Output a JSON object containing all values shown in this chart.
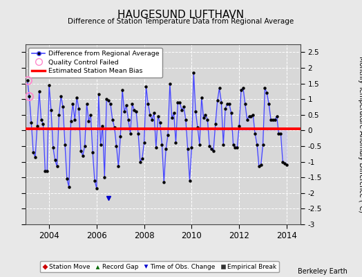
{
  "title": "HAUGESUND LUFTHAVN",
  "subtitle": "Difference of Station Temperature Data from Regional Average",
  "ylabel": "Monthly Temperature Anomaly Difference (°C)",
  "xlabel_ticks": [
    2004,
    2006,
    2008,
    2010,
    2012,
    2014
  ],
  "ylim": [
    -3,
    2.75
  ],
  "yticks": [
    -3,
    -2.5,
    -2,
    -1.5,
    -1,
    -0.5,
    0,
    0.5,
    1,
    1.5,
    2,
    2.5
  ],
  "mean_bias": 0.05,
  "bias_color": "#ff0000",
  "line_color": "#4444ff",
  "line_fill_color": "#aaaaff",
  "marker_color": "#000000",
  "qc_fail_indices": [
    0,
    1
  ],
  "background_color": "#d8d8d8",
  "fig_background_color": "#e8e8e8",
  "berkeley_earth_text": "Berkeley Earth",
  "xlim": [
    2003.0,
    2014.58
  ],
  "t_start": 2003.083,
  "data": [
    1.6,
    1.1,
    0.25,
    -0.7,
    -0.85,
    0.15,
    1.25,
    0.35,
    0.2,
    -1.3,
    -1.3,
    1.45,
    0.65,
    -0.55,
    -0.95,
    -1.15,
    0.5,
    1.1,
    0.75,
    -0.45,
    -1.55,
    -1.8,
    0.3,
    0.85,
    0.35,
    1.05,
    0.7,
    -0.65,
    -0.8,
    -0.5,
    0.85,
    0.3,
    0.5,
    -0.7,
    -1.6,
    -1.85,
    1.15,
    -0.45,
    0.15,
    -1.5,
    1.0,
    0.95,
    0.85,
    0.35,
    0.1,
    -0.5,
    -1.15,
    -0.2,
    1.3,
    0.6,
    0.8,
    0.35,
    -0.1,
    0.85,
    0.65,
    0.6,
    -0.1,
    -1.0,
    -0.9,
    -0.4,
    1.4,
    0.85,
    0.5,
    0.35,
    0.55,
    -0.55,
    0.45,
    0.25,
    -0.45,
    -1.65,
    -0.6,
    -0.15,
    1.5,
    0.4,
    0.55,
    -0.4,
    0.9,
    0.9,
    0.65,
    0.75,
    0.35,
    -0.6,
    -1.6,
    -0.55,
    1.85,
    0.6,
    0.1,
    -0.45,
    1.05,
    0.4,
    0.5,
    0.35,
    -0.5,
    -0.6,
    -0.65,
    0.2,
    0.95,
    1.35,
    0.9,
    -0.45,
    0.7,
    0.85,
    0.85,
    0.55,
    -0.45,
    -0.55,
    -0.55,
    0.15,
    1.3,
    1.35,
    0.85,
    0.35,
    0.45,
    0.45,
    0.5,
    -0.1,
    -0.45,
    -1.15,
    -1.1,
    -0.45,
    1.35,
    1.2,
    0.85,
    0.35,
    0.35,
    0.35,
    0.45,
    -0.1,
    -0.1,
    -1.0,
    -1.05,
    -1.1
  ],
  "time_obs_change_x": 2006.5,
  "time_obs_change_y": -2.15
}
